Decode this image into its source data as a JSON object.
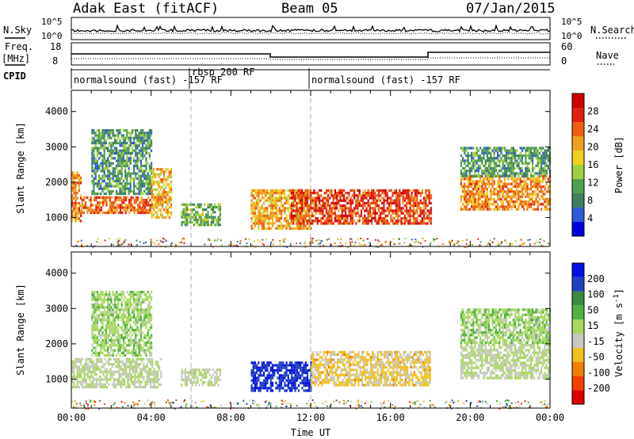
{
  "header": {
    "station": "Adak East (fitACF)",
    "beam": "Beam 05",
    "date": "07/Jan/2015"
  },
  "top_panels": {
    "nsky_label": "N.Sky",
    "nsky_ticks": [
      "10^5",
      "10^0"
    ],
    "nsearch_label": "N.Search",
    "nsearch_ticks": [
      "10^5",
      "10^0"
    ],
    "freq_label": "Freq.",
    "freq_unit": "[MHz]",
    "freq_ticks": [
      "18",
      "8"
    ],
    "nave_label": "Nave",
    "nave_ticks": [
      "60",
      "0"
    ],
    "cpid_label": "CPID"
  },
  "cpid_segments": [
    {
      "start_hour": 0,
      "end_hour": 6,
      "text": "normalsound (fast) -157 RF"
    },
    {
      "start_hour": 6,
      "end_hour": 12,
      "text": "rbsp 200 RF"
    },
    {
      "start_hour": 12,
      "end_hour": 24,
      "text": "normalsound (fast) -157 RF"
    }
  ],
  "colors": {
    "power": [
      "#0000dd",
      "#2f5ad8",
      "#3f7f5f",
      "#4fa04f",
      "#9fd040",
      "#f0d020",
      "#f0a020",
      "#f06010",
      "#e02010",
      "#d00000"
    ],
    "velocity": [
      "#e00000",
      "#f04000",
      "#f08000",
      "#f0c020",
      "#c8c8c0",
      "#a8d860",
      "#50b040",
      "#3a8a40",
      "#2040c0",
      "#0010e0"
    ]
  },
  "chart_data": [
    {
      "type": "heatmap",
      "title": "Power",
      "ylabel": "Slant Range [km]",
      "yticks": [
        "1000",
        "2000",
        "3000",
        "4000"
      ],
      "ylim": [
        180,
        4600
      ],
      "xlim": [
        0,
        24
      ],
      "colorbar": {
        "label": "Power [dB]",
        "ticks": [
          "4",
          "8",
          "12",
          "16",
          "20",
          "24",
          "28"
        ],
        "range": [
          0,
          32
        ]
      },
      "echo_regions": [
        {
          "t_start": 0.0,
          "t_end": 0.5,
          "r_min": 900,
          "r_max": 2300,
          "level_dB": 22
        },
        {
          "t_start": 0.5,
          "t_end": 4.0,
          "r_min": 1100,
          "r_max": 1600,
          "level_dB": 24
        },
        {
          "t_start": 1.0,
          "t_end": 4.0,
          "r_min": 1700,
          "r_max": 3500,
          "level_dB": 10
        },
        {
          "t_start": 4.0,
          "t_end": 5.0,
          "r_min": 1000,
          "r_max": 2400,
          "level_dB": 20
        },
        {
          "t_start": 5.5,
          "t_end": 7.5,
          "r_min": 800,
          "r_max": 1400,
          "level_dB": 12
        },
        {
          "t_start": 9.0,
          "t_end": 12.0,
          "r_min": 700,
          "r_max": 1800,
          "level_dB": 20
        },
        {
          "t_start": 11.0,
          "t_end": 18.0,
          "r_min": 800,
          "r_max": 1800,
          "level_dB": 26
        },
        {
          "t_start": 19.5,
          "t_end": 24.0,
          "r_min": 1200,
          "r_max": 2200,
          "level_dB": 22
        },
        {
          "t_start": 19.5,
          "t_end": 24.0,
          "r_min": 2200,
          "r_max": 3000,
          "level_dB": 10
        }
      ]
    },
    {
      "type": "heatmap",
      "title": "Velocity",
      "ylabel": "Slant Range [km]",
      "xlabel": "Time UT",
      "yticks": [
        "1000",
        "2000",
        "3000",
        "4000"
      ],
      "ylim": [
        180,
        4600
      ],
      "xlim": [
        0,
        24
      ],
      "xticks": [
        "00:00",
        "04:00",
        "08:00",
        "12:00",
        "16:00",
        "20:00",
        "00:00"
      ],
      "colorbar": {
        "label": "Velocity [m s",
        "label_sup": "-1",
        "label_end": "]",
        "ticks": [
          "-200",
          "-100",
          "-50",
          "-15",
          "15",
          "50",
          "100",
          "200"
        ],
        "range": [
          -250,
          250
        ]
      },
      "echo_regions": [
        {
          "t_start": 0.0,
          "t_end": 4.5,
          "r_min": 800,
          "r_max": 1600,
          "level": 0
        },
        {
          "t_start": 1.0,
          "t_end": 4.0,
          "r_min": 1700,
          "r_max": 3500,
          "level": 30
        },
        {
          "t_start": 5.5,
          "t_end": 7.5,
          "r_min": 800,
          "r_max": 1300,
          "level": 0
        },
        {
          "t_start": 9.0,
          "t_end": 12.0,
          "r_min": 700,
          "r_max": 1500,
          "level": 200
        },
        {
          "t_start": 12.0,
          "t_end": 18.0,
          "r_min": 800,
          "r_max": 1800,
          "level": -60
        },
        {
          "t_start": 19.5,
          "t_end": 24.0,
          "r_min": 1000,
          "r_max": 2000,
          "level": 0
        },
        {
          "t_start": 19.5,
          "t_end": 24.0,
          "r_min": 2000,
          "r_max": 3000,
          "level": 30
        }
      ]
    }
  ]
}
